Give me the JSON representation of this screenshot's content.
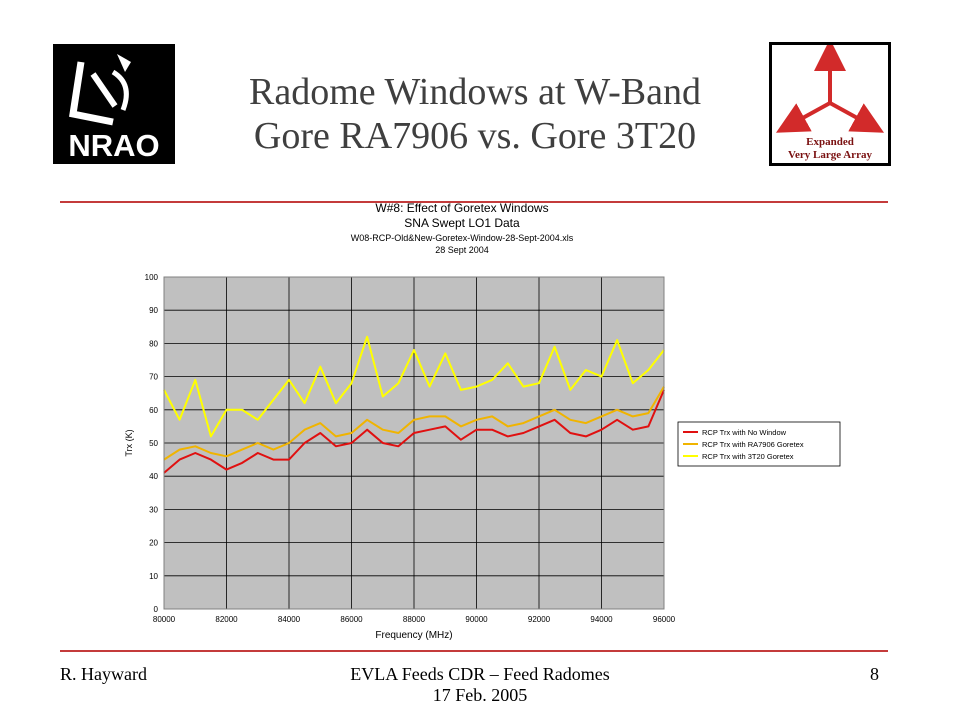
{
  "slide": {
    "title_line1": "Radome Windows at W-Band",
    "title_line2": "Gore RA7906 vs. Gore 3T20",
    "footer_left": "R. Hayward",
    "footer_center_line1": "EVLA Feeds CDR – Feed Radomes",
    "footer_center_line2": "17 Feb. 2005",
    "page_number": "8",
    "accent_color": "#c43b3b",
    "logo_left_text": "NRAO",
    "logo_right_line1": "Expanded",
    "logo_right_line2": "Very Large Array"
  },
  "chart_data": {
    "type": "line",
    "title_lines": [
      "W#8: Effect of Goretex Windows",
      "SNA Swept LO1 Data",
      "W08-RCP-Old&New-Goretex-Window-28-Sept-2004.xls",
      "28 Sept 2004"
    ],
    "xlabel": "Frequency (MHz)",
    "ylabel": "Trx (K)",
    "xlim": [
      80000,
      96000
    ],
    "ylim": [
      0,
      100
    ],
    "xticks": [
      80000,
      82000,
      84000,
      86000,
      88000,
      90000,
      92000,
      94000,
      96000
    ],
    "yticks": [
      0,
      10,
      20,
      30,
      40,
      50,
      60,
      70,
      80,
      90,
      100
    ],
    "grid": true,
    "plot_background": "#c0c0c0",
    "legend_position": "right",
    "x": [
      80000,
      80500,
      81000,
      81500,
      82000,
      82500,
      83000,
      83500,
      84000,
      84500,
      85000,
      85500,
      86000,
      86500,
      87000,
      87500,
      88000,
      88500,
      89000,
      89500,
      90000,
      90500,
      91000,
      91500,
      92000,
      92500,
      93000,
      93500,
      94000,
      94500,
      95000,
      95500,
      96000
    ],
    "series": [
      {
        "name": "RCP Trx with No Window",
        "color": "#e01010",
        "values": [
          41,
          45,
          47,
          45,
          42,
          44,
          47,
          45,
          45,
          50,
          53,
          49,
          50,
          54,
          50,
          49,
          53,
          54,
          55,
          51,
          54,
          54,
          52,
          53,
          55,
          57,
          53,
          52,
          54,
          57,
          54,
          55,
          66
        ]
      },
      {
        "name": "RCP Trx with RA7906 Goretex",
        "color": "#f0b400",
        "values": [
          45,
          48,
          49,
          47,
          46,
          48,
          50,
          48,
          50,
          54,
          56,
          52,
          53,
          57,
          54,
          53,
          57,
          58,
          58,
          55,
          57,
          58,
          55,
          56,
          58,
          60,
          57,
          56,
          58,
          60,
          58,
          59,
          67
        ]
      },
      {
        "name": "RCP Trx with 3T20 Goretex",
        "color": "#ffff00",
        "values": [
          66,
          57,
          69,
          52,
          60,
          60,
          57,
          63,
          69,
          62,
          73,
          62,
          68,
          82,
          64,
          68,
          78,
          67,
          77,
          66,
          67,
          69,
          74,
          67,
          68,
          79,
          66,
          72,
          70,
          81,
          68,
          72,
          78
        ]
      }
    ]
  }
}
